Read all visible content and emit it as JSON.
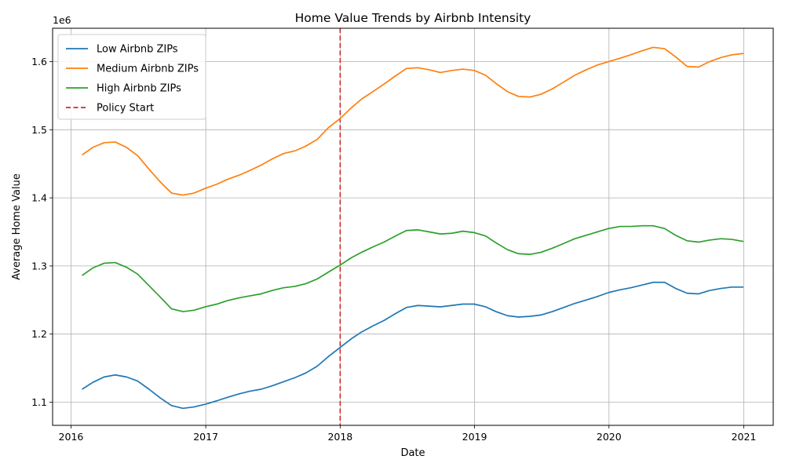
{
  "chart_data": {
    "type": "line",
    "title": "Home Value Trends by Airbnb Intensity",
    "xlabel": "Date",
    "ylabel": "Average Home Value",
    "y_offset_label": "1e6",
    "xlim": [
      "2015-11-12",
      "2021-03-22"
    ],
    "ylim": [
      1.066,
      1.649
    ],
    "x_ticks": [
      {
        "value": "2016-01-01",
        "label": "2016"
      },
      {
        "value": "2017-01-01",
        "label": "2017"
      },
      {
        "value": "2018-01-01",
        "label": "2018"
      },
      {
        "value": "2019-01-01",
        "label": "2019"
      },
      {
        "value": "2020-01-01",
        "label": "2020"
      },
      {
        "value": "2021-01-01",
        "label": "2021"
      }
    ],
    "y_ticks": [
      {
        "value": 1.1,
        "label": "1.1"
      },
      {
        "value": 1.2,
        "label": "1.2"
      },
      {
        "value": 1.3,
        "label": "1.3"
      },
      {
        "value": 1.4,
        "label": "1.4"
      },
      {
        "value": 1.5,
        "label": "1.5"
      },
      {
        "value": 1.6,
        "label": "1.6"
      }
    ],
    "grid": true,
    "legend_position": "top-left",
    "dates": [
      "2016-01-31",
      "2016-02-29",
      "2016-03-31",
      "2016-04-30",
      "2016-05-31",
      "2016-06-30",
      "2016-07-31",
      "2016-08-31",
      "2016-09-30",
      "2016-10-31",
      "2016-11-30",
      "2016-12-31",
      "2017-01-31",
      "2017-02-28",
      "2017-03-31",
      "2017-04-30",
      "2017-05-31",
      "2017-06-30",
      "2017-07-31",
      "2017-08-31",
      "2017-09-30",
      "2017-10-31",
      "2017-11-30",
      "2017-12-31",
      "2018-01-31",
      "2018-02-28",
      "2018-03-31",
      "2018-04-30",
      "2018-05-31",
      "2018-06-30",
      "2018-07-31",
      "2018-08-31",
      "2018-09-30",
      "2018-10-31",
      "2018-11-30",
      "2018-12-31",
      "2019-01-31",
      "2019-02-28",
      "2019-03-31",
      "2019-04-30",
      "2019-05-31",
      "2019-06-30",
      "2019-07-31",
      "2019-08-31",
      "2019-09-30",
      "2019-10-31",
      "2019-11-30",
      "2019-12-31",
      "2020-01-31",
      "2020-02-29",
      "2020-03-31",
      "2020-04-30",
      "2020-05-31",
      "2020-06-30",
      "2020-07-31",
      "2020-08-31",
      "2020-09-30",
      "2020-10-31",
      "2020-11-30",
      "2020-12-31"
    ],
    "series": [
      {
        "name": "Low Airbnb ZIPs",
        "color": "#1f77b4",
        "values": [
          1.119,
          1.129,
          1.137,
          1.14,
          1.137,
          1.131,
          1.119,
          1.106,
          1.095,
          1.091,
          1.093,
          1.097,
          1.102,
          1.107,
          1.112,
          1.116,
          1.119,
          1.124,
          1.13,
          1.136,
          1.143,
          1.153,
          1.167,
          1.18,
          1.193,
          1.203,
          1.212,
          1.22,
          1.23,
          1.239,
          1.242,
          1.241,
          1.24,
          1.242,
          1.244,
          1.244,
          1.24,
          1.233,
          1.227,
          1.225,
          1.226,
          1.228,
          1.233,
          1.239,
          1.245,
          1.25,
          1.255,
          1.261,
          1.265,
          1.268,
          1.272,
          1.276,
          1.276,
          1.267,
          1.26,
          1.259,
          1.264,
          1.267,
          1.269,
          1.269
        ]
      },
      {
        "name": "Medium Airbnb ZIPs",
        "color": "#ff7f0e",
        "values": [
          1.463,
          1.474,
          1.481,
          1.482,
          1.474,
          1.462,
          1.442,
          1.423,
          1.407,
          1.404,
          1.407,
          1.414,
          1.42,
          1.427,
          1.433,
          1.44,
          1.448,
          1.457,
          1.465,
          1.469,
          1.476,
          1.486,
          1.503,
          1.516,
          1.532,
          1.545,
          1.556,
          1.567,
          1.579,
          1.59,
          1.591,
          1.588,
          1.584,
          1.587,
          1.589,
          1.587,
          1.58,
          1.568,
          1.556,
          1.549,
          1.548,
          1.552,
          1.56,
          1.57,
          1.58,
          1.588,
          1.595,
          1.6,
          1.605,
          1.61,
          1.616,
          1.621,
          1.619,
          1.607,
          1.593,
          1.592,
          1.6,
          1.606,
          1.61,
          1.612
        ]
      },
      {
        "name": "High Airbnb ZIPs",
        "color": "#2ca02c",
        "values": [
          1.286,
          1.297,
          1.304,
          1.305,
          1.298,
          1.288,
          1.271,
          1.254,
          1.237,
          1.233,
          1.235,
          1.24,
          1.244,
          1.249,
          1.253,
          1.256,
          1.259,
          1.264,
          1.268,
          1.27,
          1.274,
          1.281,
          1.291,
          1.301,
          1.312,
          1.32,
          1.328,
          1.335,
          1.344,
          1.352,
          1.353,
          1.35,
          1.347,
          1.348,
          1.351,
          1.349,
          1.344,
          1.334,
          1.324,
          1.318,
          1.317,
          1.32,
          1.326,
          1.333,
          1.34,
          1.345,
          1.35,
          1.355,
          1.358,
          1.358,
          1.359,
          1.359,
          1.355,
          1.345,
          1.337,
          1.335,
          1.338,
          1.34,
          1.339,
          1.336
        ]
      }
    ],
    "markers": [
      {
        "name": "Policy Start",
        "x": "2018-01-01",
        "color": "#d62728",
        "style": "dashed"
      }
    ]
  }
}
